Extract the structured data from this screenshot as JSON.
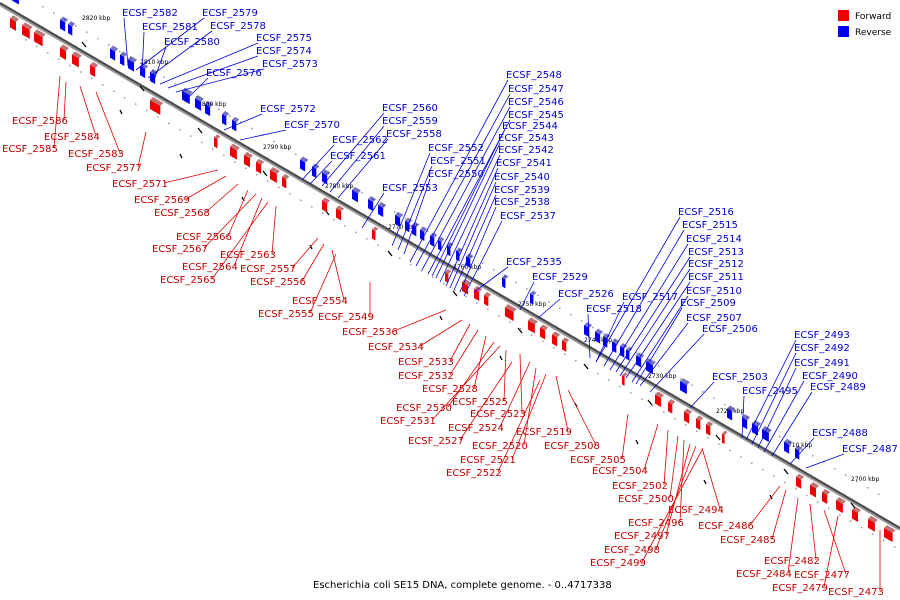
{
  "legend": [
    {
      "label": "Forward",
      "color": "#ee0000"
    },
    {
      "label": "Reverse",
      "color": "#0000ee"
    }
  ],
  "caption": "Escherichia coli SE15 DNA, complete genome. - 0..4717338",
  "ticks": [
    "2820 kbp",
    "2810 kbp",
    "2800 kbp",
    "2790 kbp",
    "2780 kbp",
    "2770 kbp",
    "2760 kbp",
    "2750 kbp",
    "2740 kbp",
    "2730 kbp",
    "2720 kbp",
    "2710 kbp",
    "2700 kbp"
  ],
  "forward_labels": [
    "ECSF_2586",
    "ECSF_2584",
    "ECSF_2585",
    "ECSF_2583",
    "ECSF_2577",
    "ECSF_2571",
    "ECSF_2569",
    "ECSF_2568",
    "ECSF_2566",
    "ECSF_2567",
    "ECSF_2564",
    "ECSF_2565",
    "ECSF_2563",
    "ECSF_2557",
    "ECSF_2556",
    "ECSF_2554",
    "ECSF_2555",
    "ECSF_2549",
    "ECSF_2536",
    "ECSF_2534",
    "ECSF_2533",
    "ECSF_2532",
    "ECSF_2528",
    "ECSF_2530",
    "ECSF_2525",
    "ECSF_2531",
    "ECSF_2523",
    "ECSF_2524",
    "ECSF_2527",
    "ECSF_2520",
    "ECSF_2519",
    "ECSF_2508",
    "ECSF_2521",
    "ECSF_2505",
    "ECSF_2522",
    "ECSF_2504",
    "ECSF_2502",
    "ECSF_2500",
    "ECSF_2494",
    "ECSF_2496",
    "ECSF_2497",
    "ECSF_2498",
    "ECSF_2499",
    "ECSF_2486",
    "ECSF_2485",
    "ECSF_2482",
    "ECSF_2484",
    "ECSF_2477",
    "ECSF_2479",
    "ECSF_2473"
  ],
  "reverse_labels": [
    "ECSF_2582",
    "ECSF_2579",
    "ECSF_2581",
    "ECSF_2578",
    "ECSF_2580",
    "ECSF_2575",
    "ECSF_2574",
    "ECSF_2573",
    "ECSF_2576",
    "ECSF_2572",
    "ECSF_2570",
    "ECSF_2560",
    "ECSF_2559",
    "ECSF_2558",
    "ECSF_2562",
    "ECSF_2561",
    "ECSF_2552",
    "ECSF_2551",
    "ECSF_2550",
    "ECSF_2553",
    "ECSF_2548",
    "ECSF_2547",
    "ECSF_2546",
    "ECSF_2545",
    "ECSF_2544",
    "ECSF_2543",
    "ECSF_2542",
    "ECSF_2541",
    "ECSF_2540",
    "ECSF_2539",
    "ECSF_2538",
    "ECSF_2537",
    "ECSF_2535",
    "ECSF_2529",
    "ECSF_2526",
    "ECSF_2517",
    "ECSF_2518",
    "ECSF_2516",
    "ECSF_2515",
    "ECSF_2514",
    "ECSF_2513",
    "ECSF_2512",
    "ECSF_2511",
    "ECSF_2510",
    "ECSF_2509",
    "ECSF_2507",
    "ECSF_2506",
    "ECSF_2503",
    "ECSF_2495",
    "ECSF_2493",
    "ECSF_2492",
    "ECSF_2491",
    "ECSF_2490",
    "ECSF_2489",
    "ECSF_2488",
    "ECSF_2487"
  ]
}
